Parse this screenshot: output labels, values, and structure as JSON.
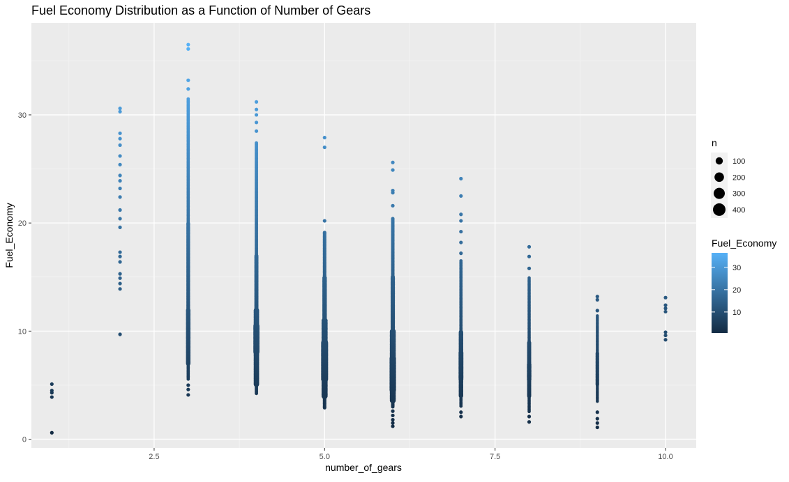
{
  "chart_data": {
    "type": "scatter",
    "title": "Fuel Economy Distribution as a Function of Number of Gears",
    "xlabel": "number_of_gears",
    "ylabel": "Fuel_Economy",
    "xlim": [
      0.7,
      10.45
    ],
    "ylim": [
      -0.8,
      38.5
    ],
    "x_ticks": [
      2.5,
      5.0,
      7.5,
      10.0
    ],
    "x_tick_labels": [
      "2.5",
      "5.0",
      "7.5",
      "10.0"
    ],
    "y_ticks": [
      0,
      10,
      20,
      30
    ],
    "y_tick_labels": [
      "0",
      "10",
      "20",
      "30"
    ],
    "grid": true,
    "panel_background": "#ebebeb",
    "groups": [
      {
        "x": 1,
        "min": 0.6,
        "max": 5.1,
        "isolated": [
          0.6,
          3.9,
          4.3,
          4.5,
          5.1
        ],
        "dense": []
      },
      {
        "x": 2,
        "min": 9.7,
        "max": 30.6,
        "isolated": [
          9.7,
          13.9,
          14.4,
          14.9,
          15.3,
          16.4,
          16.9,
          17.3,
          19.6,
          20.4,
          21.2,
          22.4,
          23.2,
          23.9,
          24.4,
          25.4,
          26.2,
          27.2,
          27.8,
          28.3,
          30.3,
          30.6
        ],
        "dense": []
      },
      {
        "x": 3,
        "min": 4.0,
        "max": 36.5,
        "isolated": [
          4.1,
          4.6,
          5.0,
          32.4,
          33.2,
          36.1,
          36.5
        ],
        "dense": [
          [
            5.5,
            31.5,
            0.22
          ],
          [
            7.0,
            12.0,
            0.55
          ],
          [
            12.0,
            20.0,
            0.35
          ]
        ]
      },
      {
        "x": 4,
        "min": 4.0,
        "max": 31.2,
        "isolated": [
          28.5,
          29.3,
          30.0,
          30.5,
          31.2
        ],
        "dense": [
          [
            4.2,
            27.5,
            0.25
          ],
          [
            5.0,
            12.0,
            0.8
          ],
          [
            8.0,
            10.5,
            1.0
          ],
          [
            12.0,
            17.0,
            0.45
          ]
        ]
      },
      {
        "x": 5,
        "min": 2.8,
        "max": 27.9,
        "isolated": [
          20.2,
          27.0,
          27.9
        ],
        "dense": [
          [
            2.9,
            19.2,
            0.3
          ],
          [
            4.0,
            11.0,
            1.0
          ],
          [
            5.5,
            9.0,
            1.25
          ],
          [
            11.0,
            15.0,
            0.55
          ]
        ]
      },
      {
        "x": 6,
        "min": 1.2,
        "max": 25.6,
        "isolated": [
          1.2,
          1.5,
          1.8,
          2.2,
          2.6,
          21.6,
          22.8,
          23.0,
          24.9,
          25.6
        ],
        "dense": [
          [
            3.0,
            20.5,
            0.28
          ],
          [
            3.5,
            10.0,
            0.95
          ],
          [
            4.5,
            7.5,
            1.1
          ],
          [
            10.0,
            15.0,
            0.5
          ]
        ]
      },
      {
        "x": 7,
        "min": 2.1,
        "max": 24.1,
        "isolated": [
          2.1,
          2.5,
          17.2,
          18.2,
          19.2,
          20.2,
          20.8,
          22.5,
          24.1
        ],
        "dense": [
          [
            3.0,
            16.5,
            0.22
          ],
          [
            4.0,
            10.0,
            0.55
          ],
          [
            5.5,
            8.0,
            0.65
          ]
        ]
      },
      {
        "x": 8,
        "min": 1.6,
        "max": 17.8,
        "isolated": [
          1.6,
          2.1,
          15.8,
          16.9,
          17.8
        ],
        "dense": [
          [
            2.5,
            15.0,
            0.2
          ],
          [
            4.0,
            9.0,
            0.45
          ],
          [
            5.5,
            7.0,
            0.55
          ]
        ]
      },
      {
        "x": 9,
        "min": 1.1,
        "max": 13.2,
        "isolated": [
          1.1,
          1.5,
          1.9,
          2.5,
          11.9,
          12.9,
          13.2
        ],
        "dense": [
          [
            3.5,
            11.5,
            0.15
          ],
          [
            5.0,
            8.0,
            0.3
          ]
        ]
      },
      {
        "x": 10,
        "min": 9.2,
        "max": 13.1,
        "isolated": [
          9.2,
          9.6,
          9.9,
          11.8,
          12.1,
          12.4,
          13.1
        ],
        "dense": []
      }
    ],
    "size_legend": {
      "title": "n",
      "labels": [
        "100",
        "200",
        "300",
        "400"
      ]
    },
    "color_legend": {
      "title": "Fuel_Economy",
      "labels": [
        "30",
        "20",
        "10"
      ],
      "values": [
        30,
        20,
        10
      ],
      "range": [
        0.6,
        36.5
      ],
      "low_color": "#132b43",
      "high_color": "#56b1f7"
    }
  }
}
